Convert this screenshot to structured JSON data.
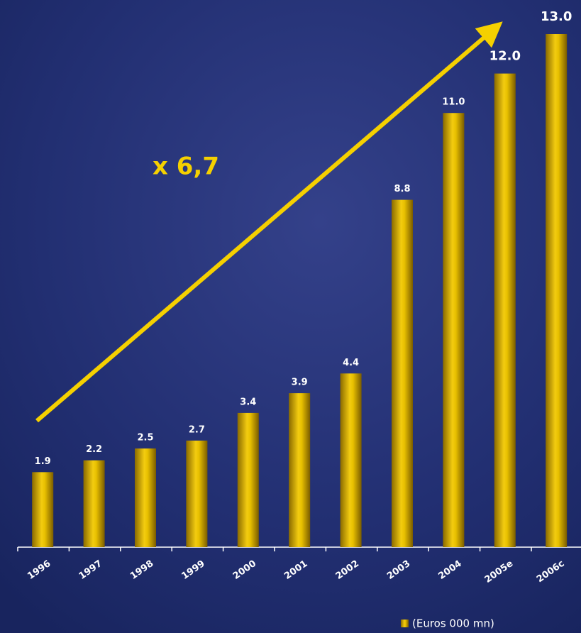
{
  "chart_data": {
    "type": "bar",
    "annotation": "x 6,7",
    "categories": [
      "1996",
      "1997",
      "1998",
      "1999",
      "2000",
      "2001",
      "2002",
      "2003",
      "2004",
      "2005e",
      "2006c"
    ],
    "series": [
      {
        "name": "(Euros 000 mn)",
        "color": "#e8c000",
        "values": [
          1.9,
          2.2,
          2.5,
          2.7,
          3.4,
          3.9,
          4.4,
          8.8,
          11.0,
          12.0,
          13.0
        ],
        "value_labels": [
          "1.9",
          "2.2",
          "2.5",
          "2.7",
          "3.4",
          "3.9",
          "4.4",
          "8.8",
          "11.0",
          "12.0",
          "13.0"
        ]
      }
    ]
  }
}
